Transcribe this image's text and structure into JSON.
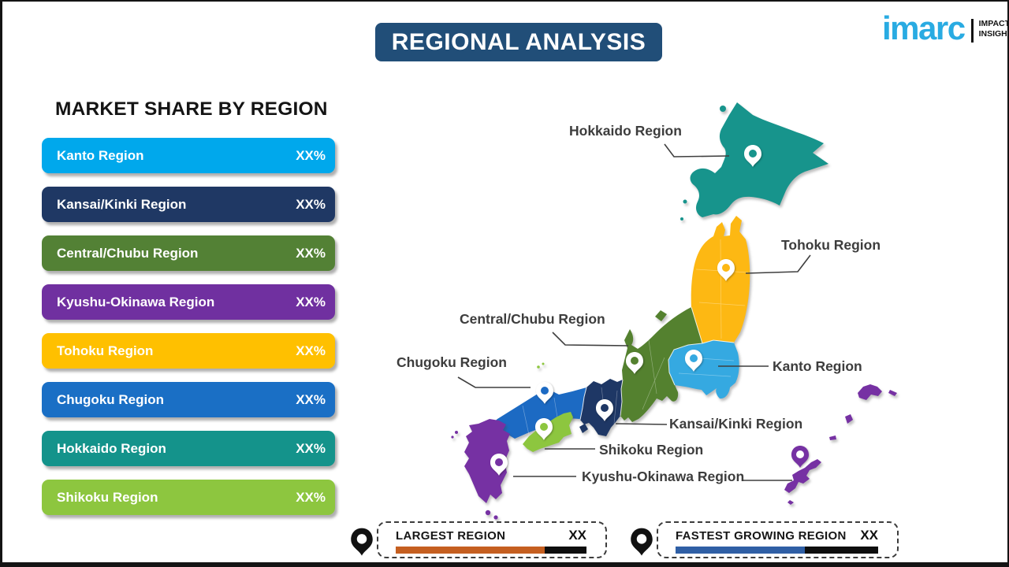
{
  "header": {
    "title": "REGIONAL ANALYSIS",
    "banner_color": "#214E78"
  },
  "logo": {
    "brand": "imarc",
    "brand_color": "#29ABE2",
    "tagline_line1": "IMPACTFUL",
    "tagline_line2": "INSIGHTS"
  },
  "market_share": {
    "heading": "MARKET SHARE BY REGION",
    "items": [
      {
        "label": "Kanto Region",
        "value": "XX%",
        "color": "#00A8EC"
      },
      {
        "label": "Kansai/Kinki Region",
        "value": "XX%",
        "color": "#1F3864"
      },
      {
        "label": "Central/Chubu Region",
        "value": "XX%",
        "color": "#538135"
      },
      {
        "label": "Kyushu-Okinawa Region",
        "value": "XX%",
        "color": "#7030A0"
      },
      {
        "label": "Tohoku Region",
        "value": "XX%",
        "color": "#FFC000"
      },
      {
        "label": "Chugoku Region",
        "value": "XX%",
        "color": "#1A6FC5"
      },
      {
        "label": "Hokkaido Region",
        "value": "XX%",
        "color": "#14938B"
      },
      {
        "label": "Shikoku Region",
        "value": "XX%",
        "color": "#8DC63F"
      }
    ]
  },
  "map": {
    "region_colors": {
      "hokkaido": "#17948C",
      "tohoku": "#FDB813",
      "kanto": "#35A9E1",
      "chubu": "#54812F",
      "kansai": "#1E3765",
      "chugoku": "#1C6AC3",
      "shikoku": "#8DC63F",
      "kyushu": "#7631A3",
      "okinawa": "#7631A3"
    },
    "labels": {
      "hokkaido": "Hokkaido Region",
      "tohoku": "Tohoku Region",
      "central_chubu": "Central/Chubu Region",
      "chugoku": "Chugoku Region",
      "kanto": "Kanto Region",
      "kansai": "Kansai/Kinki Region",
      "shikoku": "Shikoku Region",
      "kyushu_okinawa": "Kyushu-Okinawa Region"
    }
  },
  "legend": {
    "largest": {
      "label": "LARGEST REGION",
      "value": "XX",
      "bar_color": "#C55F20",
      "fill_pct": 78
    },
    "fastest": {
      "label": "FASTEST GROWING REGION",
      "value": "XX",
      "bar_color": "#2F5FA5",
      "fill_pct": 64
    }
  }
}
